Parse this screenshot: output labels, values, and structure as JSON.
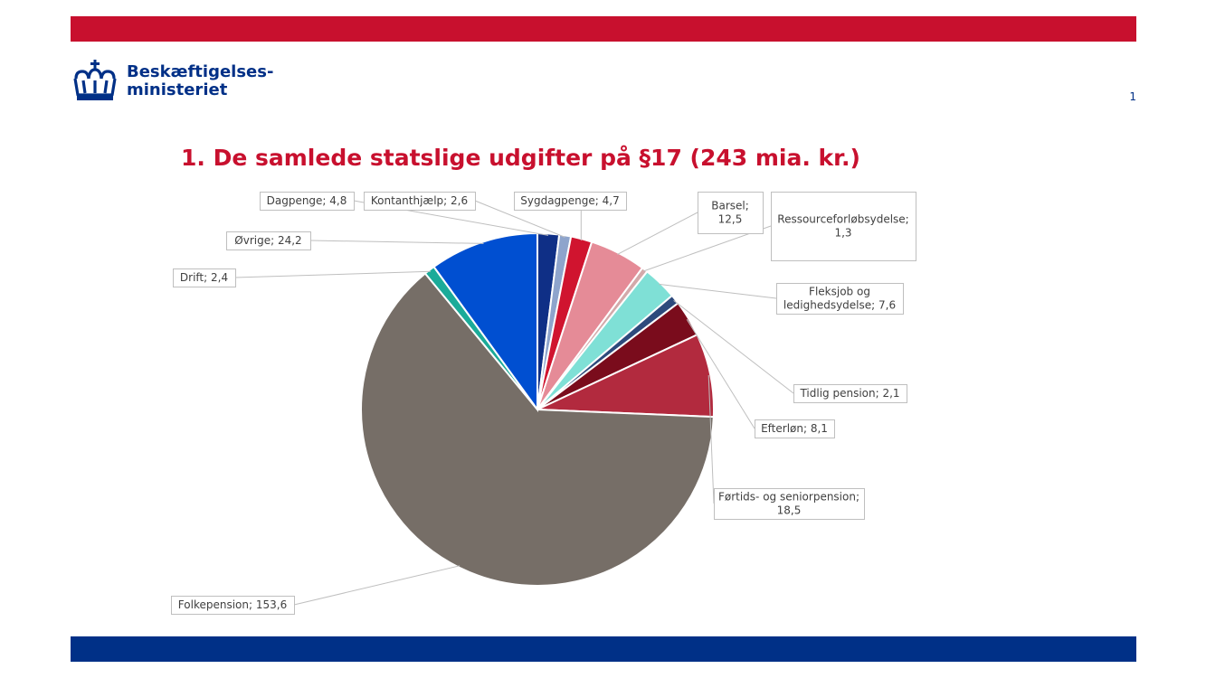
{
  "header": {
    "logo_line1": "Beskæftigelses-",
    "logo_line2": "ministeriet",
    "page_number": "1",
    "title": "1. De samlede statslige udgifter på §17 (243 mia. kr.)"
  },
  "colors": {
    "top_bar": "#c8102e",
    "bottom_bar": "#003087",
    "logo": "#003087",
    "title": "#c8102e"
  },
  "chart_data": {
    "type": "pie",
    "title": "1. De samlede statslige udgifter på §17 (243 mia. kr.)",
    "start_angle_deg": 0,
    "direction": "clockwise",
    "slices": [
      {
        "name": "Dagpenge",
        "value": 4.8,
        "color": "#0f2f86",
        "label": [
          "Dagpenge;  4,8"
        ]
      },
      {
        "name": "Kontanthjælp",
        "value": 2.6,
        "color": "#8ea4cc",
        "label": [
          "Kontanthjælp;  2,6"
        ]
      },
      {
        "name": "Sygdagpenge",
        "value": 4.7,
        "color": "#d0142f",
        "label": [
          "Sygdagpenge;  4,7"
        ]
      },
      {
        "name": "Barsel",
        "value": 12.5,
        "color": "#e58b97",
        "label": [
          "Barsel;",
          "12,5"
        ]
      },
      {
        "name": "Ressourceforløbsydelse",
        "value": 1.3,
        "color": "#d3a9aa",
        "label": [
          "Ressourceforløbsydelse;",
          "1,3"
        ]
      },
      {
        "name": "Fleksjob og ledighedsydelse",
        "value": 7.6,
        "color": "#7fe0d6",
        "label": [
          "Fleksjob og",
          "ledighedsydelse;  7,6"
        ]
      },
      {
        "name": "Tidlig pension",
        "value": 2.1,
        "color": "#2d4a7c",
        "label": [
          "Tidlig pension;  2,1"
        ]
      },
      {
        "name": "Efterløn",
        "value": 8.1,
        "color": "#7a0c1c",
        "label": [
          "Efterløn;  8,1"
        ]
      },
      {
        "name": "Førtids- og seniorpension",
        "value": 18.5,
        "color": "#b22a3e",
        "label": [
          "Førtids- og seniorpension;",
          "18,5"
        ]
      },
      {
        "name": "Folkepension",
        "value": 153.6,
        "color": "#766e67",
        "label": [
          "Folkepension;  153,6"
        ]
      },
      {
        "name": "Drift",
        "value": 2.4,
        "color": "#1bab99",
        "label": [
          "Drift;  2,4"
        ]
      },
      {
        "name": "Øvrige",
        "value": 24.2,
        "color": "#004fd1",
        "label": [
          "Øvrige;  24,2"
        ]
      }
    ]
  }
}
